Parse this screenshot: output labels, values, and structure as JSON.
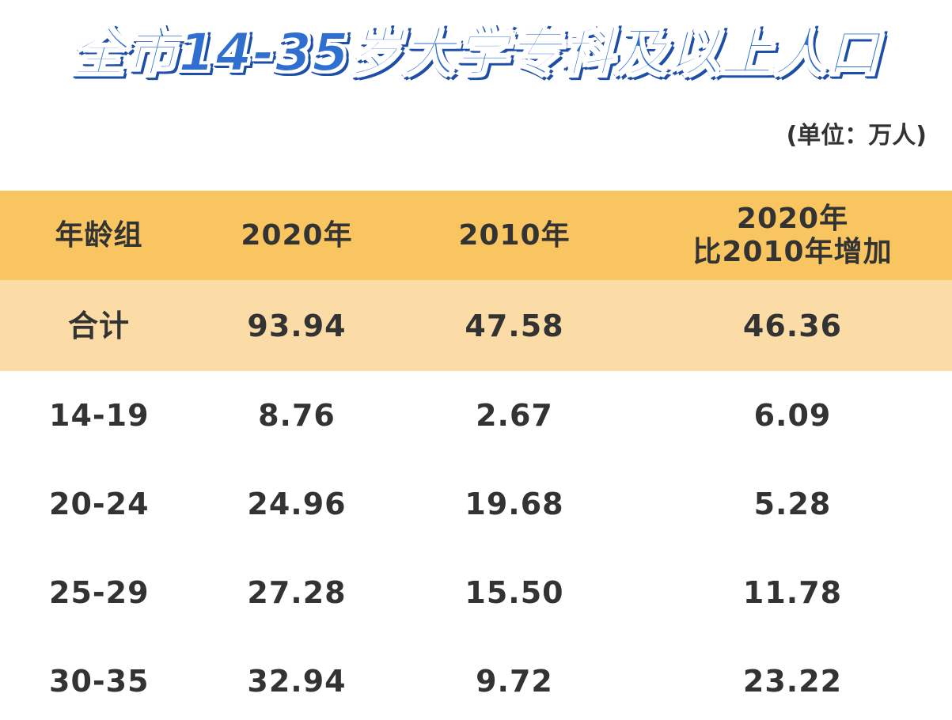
{
  "title": "全市14-35岁大学专科及以上人口",
  "unit": "(单位：万人)",
  "chart_data": {
    "type": "table",
    "columns": [
      "年龄组",
      "2020年",
      "2010年",
      "2020年\n比2010年增加"
    ],
    "column_line1": [
      "年龄组",
      "2020年",
      "2010年",
      "2020年"
    ],
    "column_line2": [
      "",
      "",
      "",
      "比2010年增加"
    ],
    "rows": [
      [
        "合计",
        "93.94",
        "47.58",
        "46.36"
      ],
      [
        "14-19",
        "8.76",
        "2.67",
        "6.09"
      ],
      [
        "20-24",
        "24.96",
        "19.68",
        "5.28"
      ],
      [
        "25-29",
        "27.28",
        "15.50",
        "11.78"
      ],
      [
        "30-35",
        "32.94",
        "9.72",
        "23.22"
      ]
    ]
  }
}
